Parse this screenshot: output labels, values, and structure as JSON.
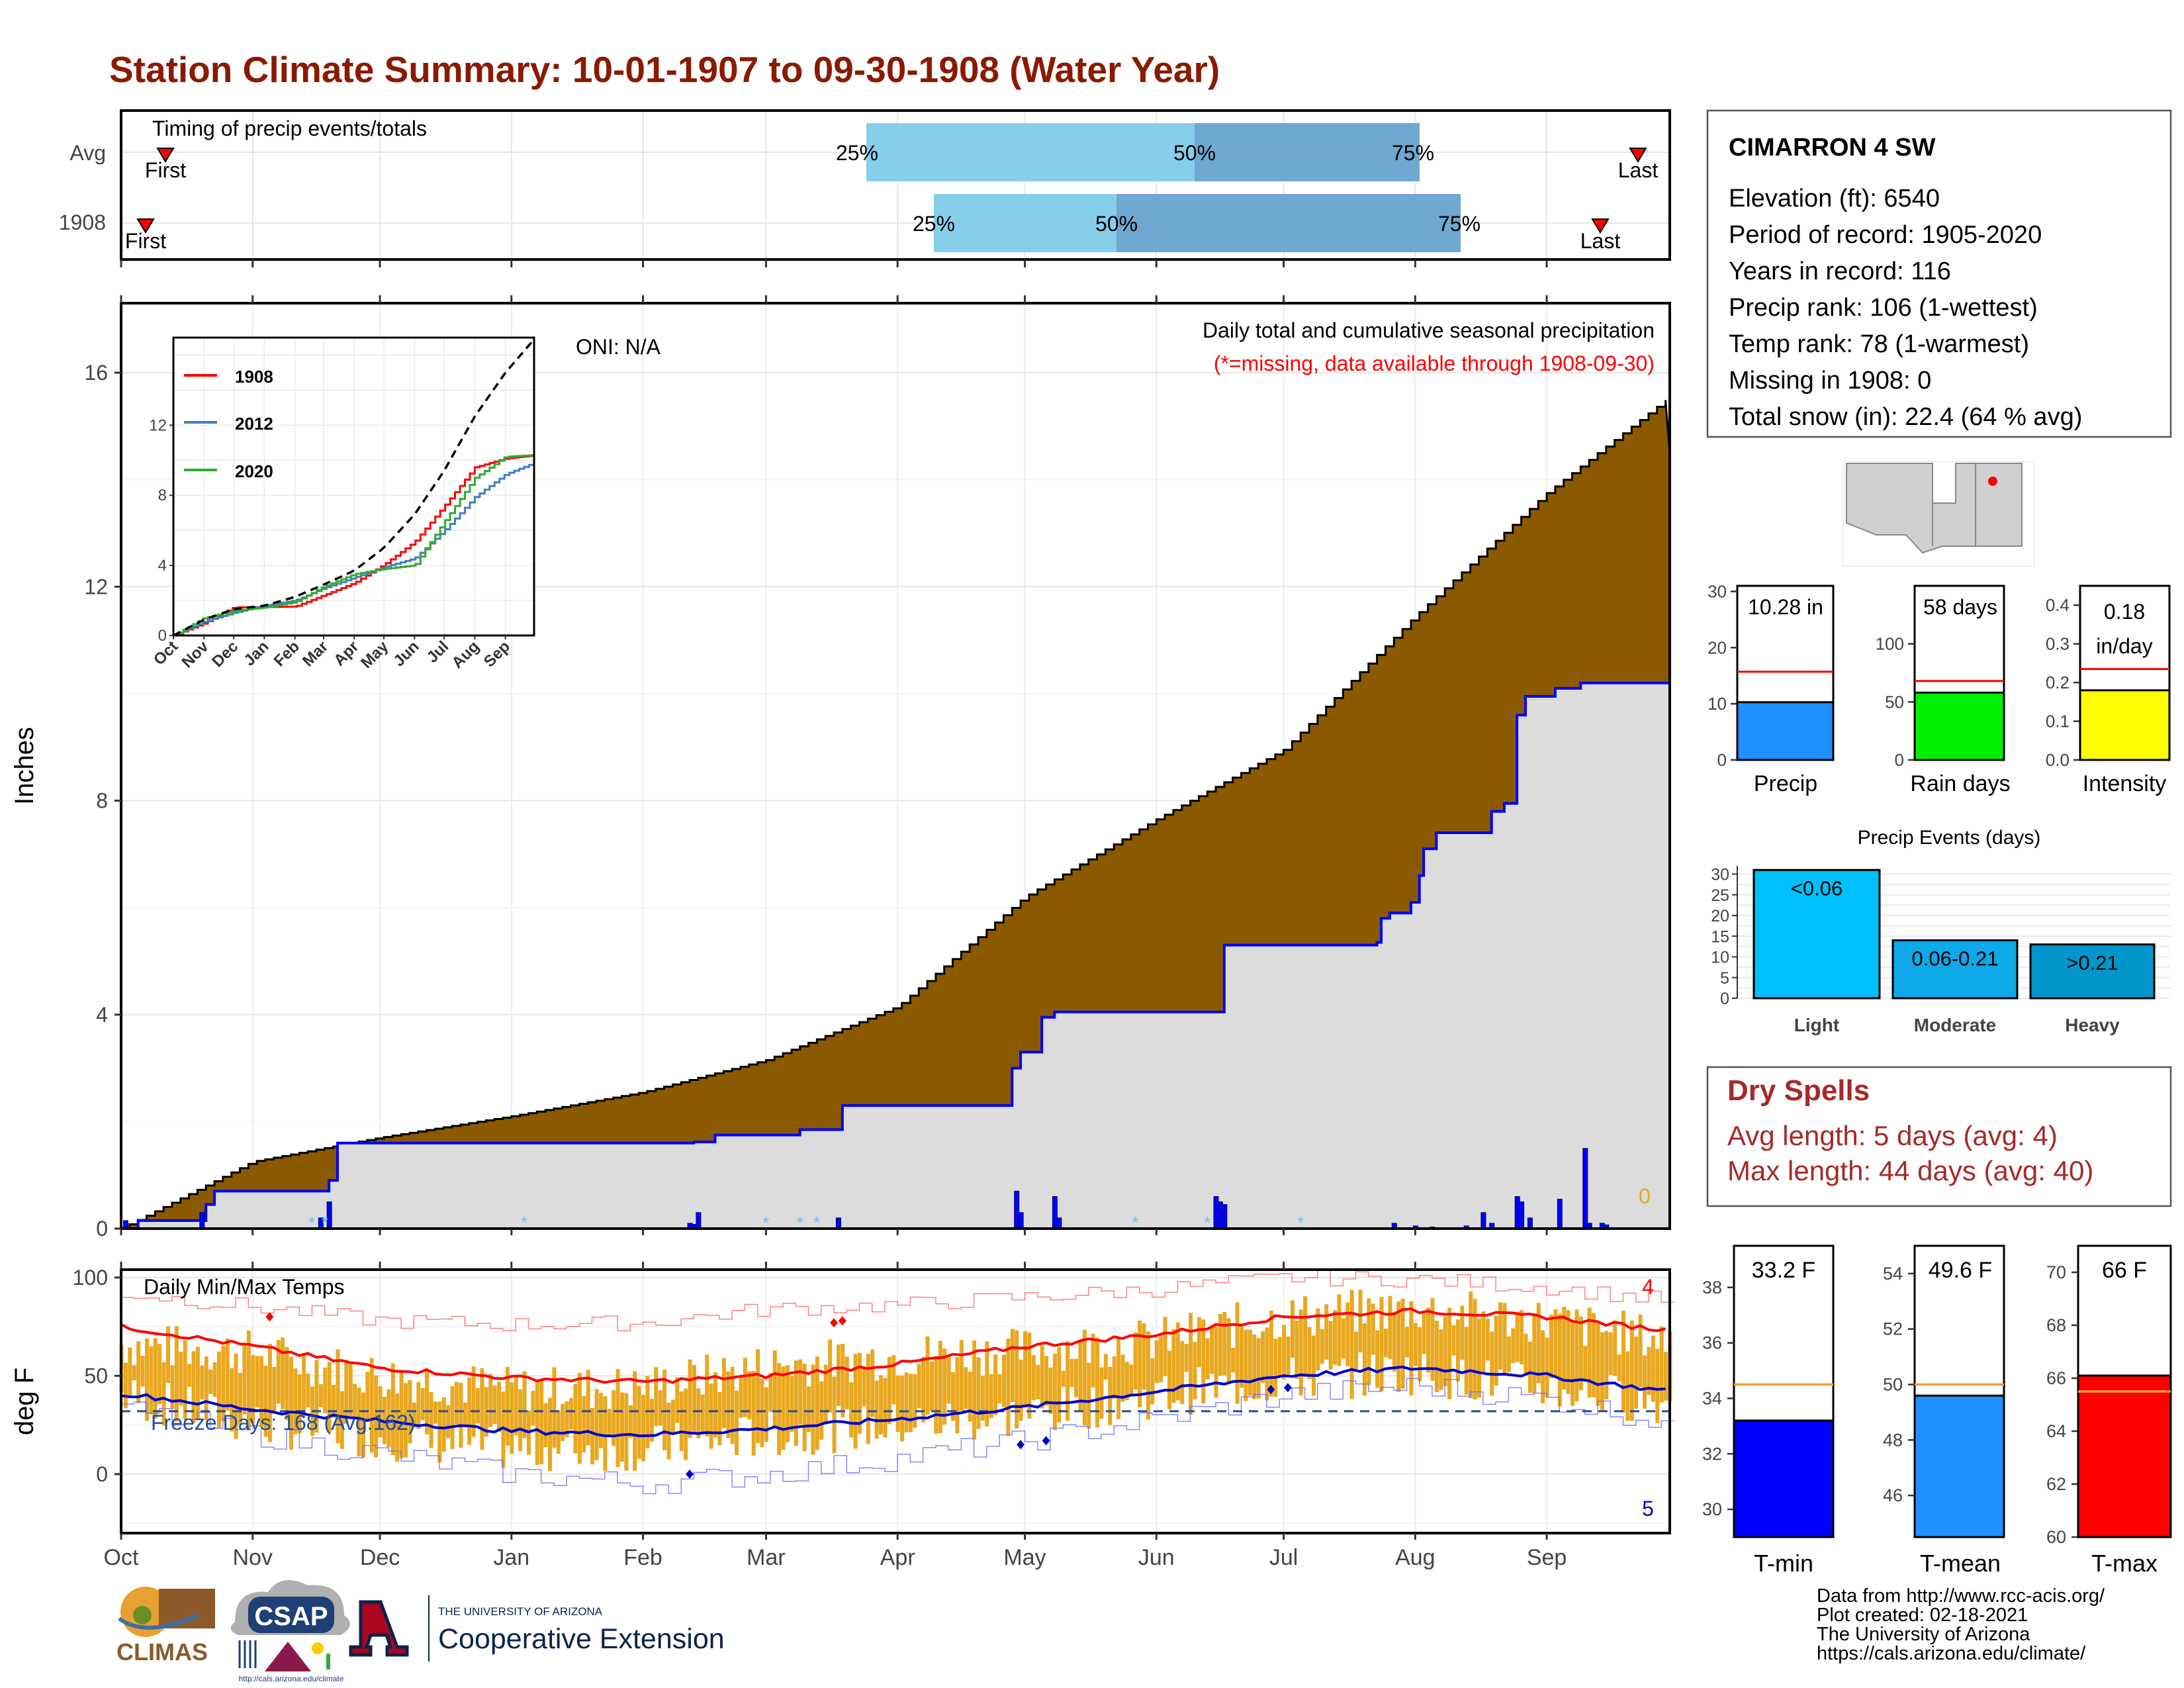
{
  "title": "Station Climate Summary: 10-01-1907 to 09-30-1908 (Water Year)",
  "colors": {
    "title": "#8B1A00",
    "brown": "#8B5A00",
    "gray_fill": "#DCDCDC",
    "blue": "#0000FF",
    "red": "#FF0000",
    "orange": "#E8A820",
    "light_blue": "#87CEEB",
    "mid_blue": "#6FA8D0",
    "dry_red": "#A52A2A"
  },
  "timing": {
    "caption": "Timing of precip events/totals",
    "rows": [
      {
        "label": "Avg",
        "first": "First",
        "last": "Last",
        "p25": "25%",
        "p50": "50%",
        "p75": "75%"
      },
      {
        "label": "1908",
        "first": "First",
        "last": "Last",
        "p25": "25%",
        "p50": "50%",
        "p75": "75%"
      }
    ]
  },
  "precip_panel": {
    "ylabel": "Inches",
    "oni": "ONI: N/A",
    "caption": "Daily total and cumulative seasonal precipitation",
    "missing_note": "(*=missing, data available through 1908-09-30)",
    "missing_count": "0",
    "y_ticks": [
      "0",
      "4",
      "8",
      "12",
      "16"
    ],
    "x_ticks": [
      "Oct",
      "Nov",
      "Dec",
      "Jan",
      "Feb",
      "Mar",
      "Apr",
      "May",
      "Jun",
      "Jul",
      "Aug",
      "Sep"
    ]
  },
  "inset": {
    "legend": [
      "1908",
      "2012",
      "2020"
    ],
    "y_ticks": [
      "0",
      "4",
      "8",
      "12"
    ],
    "x_ticks": [
      "Oct",
      "Nov",
      "Dec",
      "Jan",
      "Feb",
      "Mar",
      "Apr",
      "May",
      "Jun",
      "Jul",
      "Aug",
      "Sep"
    ]
  },
  "temp_panel": {
    "ylabel": "deg F",
    "caption": "Daily Min/Max Temps",
    "freeze": "Freeze Days: 168 (Avg:162)",
    "max_count": "4",
    "min_count": "5",
    "y_ticks": [
      "0",
      "50",
      "100"
    ]
  },
  "station": {
    "name": "CIMARRON 4 SW",
    "lines": [
      "Elevation (ft): 6540",
      "Period of record: 1905-2020",
      "Years in record: 116",
      "Precip rank: 106 (1-wettest)",
      "Temp rank: 78 (1-warmest)",
      "Missing in 1908: 0",
      "Total snow (in): 22.4 (64 % avg)"
    ]
  },
  "mini_bars": [
    {
      "label": "Precip",
      "value_text": "10.28 in",
      "ticks": [
        "0",
        "10",
        "20",
        "30"
      ],
      "value": 10.28,
      "avg": 15.7,
      "ymax": 31,
      "color": "#1E90FF"
    },
    {
      "label": "Rain days",
      "value_text": "58 days",
      "ticks": [
        "0",
        "50",
        "100"
      ],
      "value": 58,
      "avg": 68,
      "ymax": 150,
      "color": "#00EE00"
    },
    {
      "label": "Intensity",
      "value_text": "0.18 in/day",
      "ticks": [
        "0.0",
        "0.1",
        "0.2",
        "0.3",
        "0.4"
      ],
      "value": 0.18,
      "avg": 0.235,
      "ymax": 0.45,
      "color": "#FFFF00"
    }
  ],
  "events": {
    "title": "Precip Events (days)",
    "ticks": [
      "0",
      "5",
      "10",
      "15",
      "20",
      "25",
      "30"
    ],
    "bars": [
      {
        "label": "Light",
        "value": 31,
        "inner": "<0.06",
        "color": "#00BFFF"
      },
      {
        "label": "Moderate",
        "value": 14,
        "inner": "0.06-0.21",
        "color": "#0FA8E8"
      },
      {
        "label": "Heavy",
        "value": 13,
        "inner": ">0.21",
        "color": "#0096CC"
      }
    ]
  },
  "dry_spells": {
    "title": "Dry Spells",
    "avg": "Avg length: 5 days (avg: 4)",
    "max": "Max length: 44 days (avg: 40)"
  },
  "temp_bars": [
    {
      "label": "T-min",
      "value_text": "33.2 F",
      "ticks": [
        "30",
        "32",
        "34",
        "36",
        "38"
      ],
      "ymin": 29,
      "ymax": 39.5,
      "value": 33.2,
      "avg": 34.5,
      "color": "#0000FF"
    },
    {
      "label": "T-mean",
      "value_text": "49.6 F",
      "ticks": [
        "46",
        "48",
        "50",
        "52",
        "54"
      ],
      "ymin": 44.5,
      "ymax": 55,
      "value": 49.6,
      "avg": 50.0,
      "color": "#1E90FF"
    },
    {
      "label": "T-max",
      "value_text": "66 F",
      "ticks": [
        "60",
        "62",
        "64",
        "66",
        "68",
        "70"
      ],
      "ymin": 60,
      "ymax": 71,
      "value": 66.1,
      "avg": 65.5,
      "color": "#FF0000"
    }
  ],
  "footer": {
    "lines": [
      "Data from http://www.rcc-acis.org/",
      "Plot created: 02-18-2021",
      "The University of Arizona",
      "https://cals.arizona.edu/climate/"
    ],
    "climas": "CLIMAS",
    "csap": "CSAP",
    "csap_url": "http://cals.arizona.edu/climate",
    "ua_small": "THE UNIVERSITY OF ARIZONA",
    "ua_big": "Cooperative Extension"
  },
  "chart_data": [
    {
      "type": "area",
      "name": "cumulative-precip",
      "xlabel": "",
      "ylabel": "Inches",
      "ylim": [
        0,
        17.3
      ],
      "x": [
        "Oct",
        "Nov",
        "Dec",
        "Jan",
        "Feb",
        "Mar",
        "Apr",
        "May",
        "Jun",
        "Jul",
        "Aug",
        "Sep",
        "Sep end"
      ],
      "series": [
        {
          "values": [
            0,
            1.25,
            1.7,
            2.1,
            2.55,
            3.15,
            4.15,
            6.2,
            7.65,
            8.95,
            11.45,
            13.75,
            15.55
          ]
        },
        {
          "values": [
            0,
            0.7,
            1.6,
            1.62,
            1.65,
            2.3,
            3.0,
            4.05,
            5.35,
            7.4,
            9.6,
            10.1,
            10.28
          ]
        }
      ],
      "daily_precip": [
        {
          "date": "10-02",
          "value": 0.15
        },
        {
          "date": "10-20",
          "value": 0.3
        },
        {
          "date": "11-17",
          "value": 0.2
        },
        {
          "date": "11-19",
          "value": 0.5
        },
        {
          "date": "02-12",
          "value": 0.1
        },
        {
          "date": "02-13",
          "value": 0.08
        },
        {
          "date": "02-14",
          "value": 0.3
        },
        {
          "date": "03-18",
          "value": 0.2
        },
        {
          "date": "04-29",
          "value": 0.7
        },
        {
          "date": "04-30",
          "value": 0.3
        },
        {
          "date": "05-08",
          "value": 0.6
        },
        {
          "date": "05-09",
          "value": 0.2
        },
        {
          "date": "06-15",
          "value": 0.6
        },
        {
          "date": "06-16",
          "value": 0.5
        },
        {
          "date": "06-17",
          "value": 0.45
        },
        {
          "date": "07-27",
          "value": 0.1
        },
        {
          "date": "08-01",
          "value": 0.05
        },
        {
          "date": "08-05",
          "value": 0.03
        },
        {
          "date": "08-13",
          "value": 0.05
        },
        {
          "date": "08-17",
          "value": 0.3
        },
        {
          "date": "08-19",
          "value": 0.1
        },
        {
          "date": "08-25",
          "value": 0.6
        },
        {
          "date": "08-26",
          "value": 0.5
        },
        {
          "date": "08-28",
          "value": 0.2
        },
        {
          "date": "09-04",
          "value": 0.55
        },
        {
          "date": "09-10",
          "value": 1.5
        },
        {
          "date": "09-11",
          "value": 0.1
        },
        {
          "date": "09-14",
          "value": 0.1
        },
        {
          "date": "09-15",
          "value": 0.07
        }
      ]
    },
    {
      "type": "line",
      "name": "inset-cumulative",
      "ylim": [
        0,
        17
      ],
      "x": [
        "Oct",
        "Nov",
        "Dec",
        "Jan",
        "Feb",
        "Mar",
        "Apr",
        "May",
        "Jun",
        "Jul",
        "Aug",
        "Sep",
        "Sep end"
      ],
      "series": [
        {
          "name": "1908",
          "values": [
            0,
            0.7,
            1.6,
            1.62,
            1.65,
            2.3,
            3.0,
            4.05,
            5.35,
            7.4,
            9.6,
            10.1,
            10.28
          ]
        },
        {
          "name": "2012",
          "values": [
            0,
            0.8,
            1.3,
            1.7,
            2.0,
            2.7,
            3.3,
            3.9,
            4.4,
            6.0,
            7.9,
            9.2,
            9.85
          ]
        },
        {
          "name": "2020",
          "values": [
            0,
            1.0,
            1.4,
            1.6,
            1.9,
            2.8,
            3.5,
            3.8,
            4.0,
            6.5,
            9.0,
            10.2,
            10.3
          ]
        },
        {
          "values": [
            0,
            0.9,
            1.5,
            1.7,
            2.2,
            2.9,
            3.7,
            5.0,
            6.9,
            9.4,
            12.5,
            15.0,
            16.9
          ]
        }
      ]
    },
    {
      "type": "line",
      "name": "daily-temps",
      "ylim": [
        -30,
        104
      ],
      "x": [
        "Oct",
        "Nov",
        "Dec",
        "Jan",
        "Feb",
        "Mar",
        "Apr",
        "May",
        "Jun",
        "Jul",
        "Aug",
        "Sep",
        "Sep end"
      ],
      "series": [
        {
          "values": [
            75,
            65,
            54,
            49,
            47,
            50,
            56,
            65,
            71,
            80,
            83,
            80,
            73
          ]
        },
        {
          "values": [
            41,
            33,
            27,
            22,
            20,
            23,
            28,
            34,
            42,
            50,
            54,
            50,
            42
          ]
        },
        {
          "values": [
            92,
            85,
            78,
            76,
            77,
            84,
            86,
            90,
            94,
            100,
            99,
            95,
            88
          ]
        },
        {
          "values": [
            33,
            20,
            10,
            0,
            -5,
            0,
            8,
            17,
            28,
            40,
            45,
            38,
            26
          ]
        },
        {
          "values": [
            66,
            62,
            50,
            43,
            44,
            55,
            60,
            63,
            68,
            80,
            84,
            78,
            68
          ]
        },
        {
          "values": [
            40,
            26,
            19,
            13,
            13,
            20,
            25,
            30,
            40,
            48,
            52,
            44,
            36
          ]
        }
      ],
      "freeze_threshold": 32
    }
  ]
}
